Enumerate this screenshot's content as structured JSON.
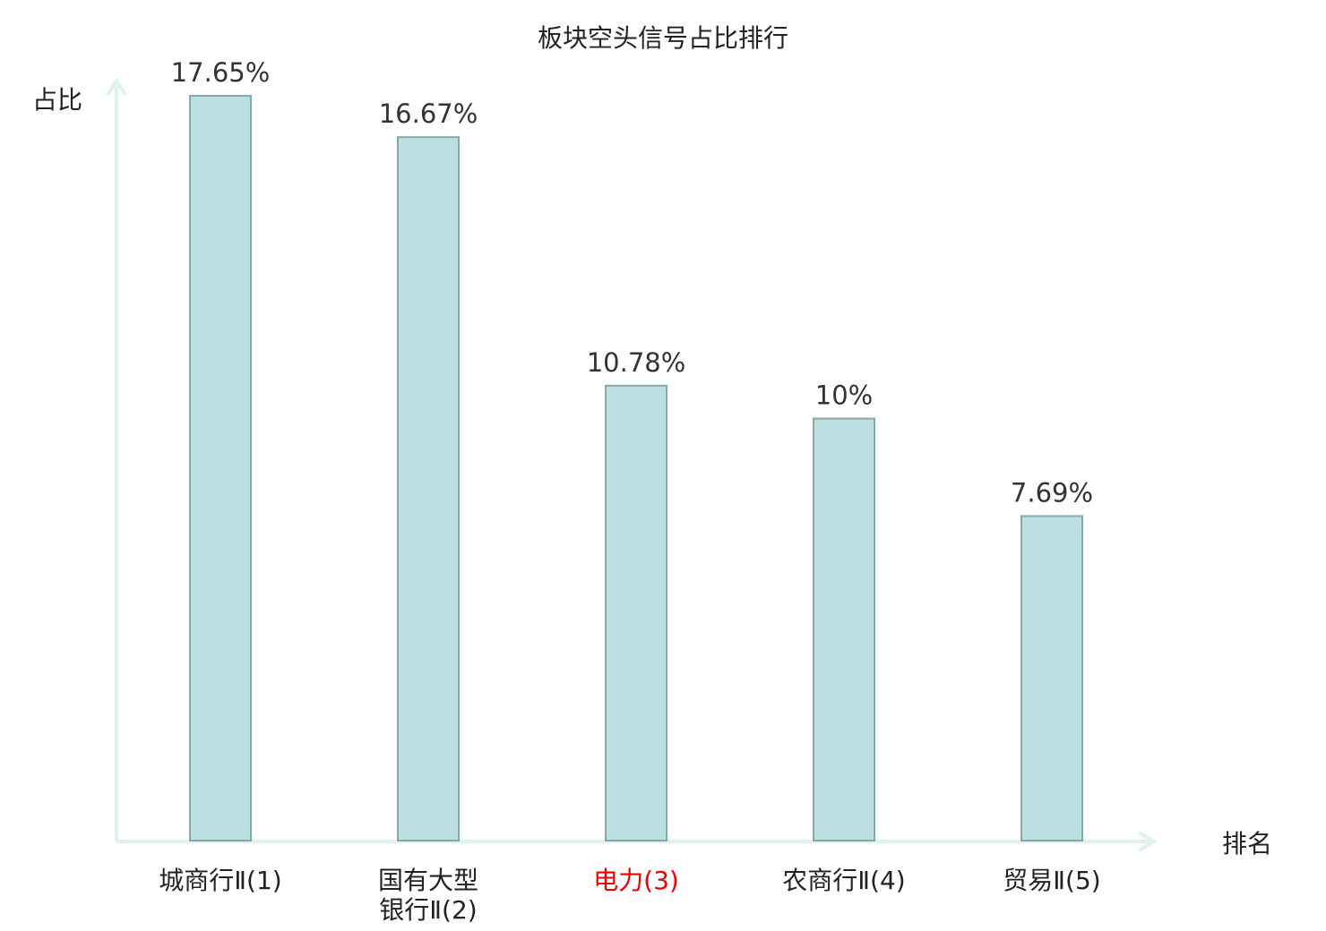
{
  "chart_data": {
    "type": "bar",
    "title": "板块空头信号占比排行",
    "ylabel": "占比",
    "xlabel": "排名",
    "ylim": [
      0,
      17.65
    ],
    "grid": false,
    "legend": "none",
    "categories": [
      {
        "lines": [
          "城商行Ⅱ(1)"
        ],
        "highlight": false
      },
      {
        "lines": [
          "国有大型",
          "银行Ⅱ(2)"
        ],
        "highlight": false
      },
      {
        "lines": [
          "电力(3)"
        ],
        "highlight": true
      },
      {
        "lines": [
          "农商行Ⅱ(4)"
        ],
        "highlight": false
      },
      {
        "lines": [
          "贸易Ⅱ(5)"
        ],
        "highlight": false
      }
    ],
    "values": [
      17.65,
      16.67,
      10.78,
      10,
      7.69
    ],
    "data_labels": [
      "17.65%",
      "16.67%",
      "10.78%",
      "10%",
      "7.69%"
    ]
  },
  "colors": {
    "bar_fill": "#bce0e2",
    "bar_stroke": "#87a6a6",
    "axis": "#dff2ef",
    "text": "#222222",
    "value_label": "#333333",
    "highlight": "#ee0000"
  }
}
